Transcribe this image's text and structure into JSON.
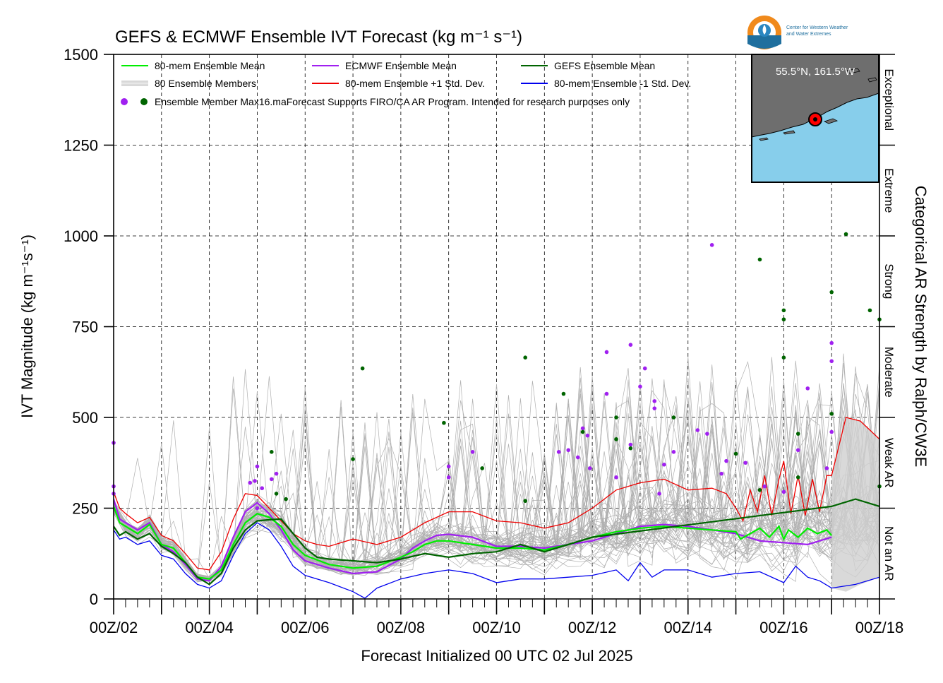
{
  "title": "GEFS & ECMWF Ensemble IVT Forecast (kg m⁻¹ s⁻¹)",
  "logo": {
    "line1": "Center for Western Weather",
    "line2": "and Water Extremes"
  },
  "chart_data": {
    "type": "line",
    "xlabel": "Forecast Initialized 00 UTC 02 Jul 2025",
    "ylabel": "IVT Magnitude (kg m⁻¹s⁻¹)",
    "right_label": "Categorical AR Strength by Ralph/CW3E",
    "xlim": [
      2,
      18
    ],
    "ylim": [
      0,
      1500
    ],
    "yticks": [
      0,
      250,
      500,
      750,
      1000,
      1250,
      1500
    ],
    "xticks": [
      {
        "day": 2,
        "label": "00Z/02"
      },
      {
        "day": 4,
        "label": "00Z/04"
      },
      {
        "day": 6,
        "label": "00Z/06"
      },
      {
        "day": 8,
        "label": "00Z/08"
      },
      {
        "day": 10,
        "label": "00Z/10"
      },
      {
        "day": 12,
        "label": "00Z/12"
      },
      {
        "day": 14,
        "label": "00Z/14"
      },
      {
        "day": 16,
        "label": "00Z/16"
      },
      {
        "day": 18,
        "label": "00Z/18"
      }
    ],
    "grid": true,
    "categories": [
      {
        "label": "Not an AR",
        "from": 0,
        "to": 250
      },
      {
        "label": "Weak AR",
        "from": 250,
        "to": 500
      },
      {
        "label": "Moderate",
        "from": 500,
        "to": 750
      },
      {
        "label": "Strong",
        "from": 750,
        "to": 1000
      },
      {
        "label": "Extreme",
        "from": 1000,
        "to": 1250
      },
      {
        "label": "Exceptional",
        "from": 1250,
        "to": 1500
      }
    ],
    "legend": [
      {
        "label": "80-mem Ensemble Mean",
        "color": "#00ee00",
        "kind": "line"
      },
      {
        "label": "ECMWF Ensemble Mean",
        "color": "#a020f0",
        "kind": "line"
      },
      {
        "label": "GEFS Ensemble Mean",
        "color": "#006400",
        "kind": "line"
      },
      {
        "label": "80 Ensemble Members",
        "color": "#b0b0b0",
        "kind": "multiline"
      },
      {
        "label": "80-mem Ensemble +1 Std. Dev.",
        "color": "#ee0000",
        "kind": "line"
      },
      {
        "label": "80-mem Ensemble -1 Std. Dev.",
        "color": "#0000ee",
        "kind": "line"
      }
    ],
    "legend_note": "Ensemble Member Max16.maForecast Supports FIRO/CA AR Program. Intended for research purposes only",
    "inset_label": "55.5°N, 161.5°W",
    "series": [
      {
        "name": "80-mem Ensemble Mean",
        "color": "#00ee00",
        "x": [
          2.0,
          2.125,
          2.25,
          2.5,
          2.75,
          3.0,
          3.25,
          3.5,
          3.75,
          4.0,
          4.25,
          4.5,
          4.75,
          5.0,
          5.25,
          5.5,
          5.75,
          6.0,
          6.5,
          7.0,
          7.5,
          8.0,
          8.25,
          8.5,
          8.75,
          9.0,
          9.5,
          10.0,
          10.5,
          11.0,
          11.5,
          12.0,
          12.5,
          13.0,
          13.5,
          14.0,
          14.5,
          15.0,
          15.1,
          15.3,
          15.5,
          15.7,
          15.9,
          16.0,
          16.1,
          16.3,
          16.5,
          16.7,
          16.9,
          17.0
        ],
        "y": [
          255,
          210,
          200,
          180,
          205,
          150,
          140,
          100,
          60,
          55,
          80,
          150,
          210,
          235,
          225,
          200,
          150,
          120,
          95,
          85,
          90,
          115,
          130,
          150,
          160,
          160,
          150,
          140,
          140,
          135,
          150,
          170,
          185,
          195,
          200,
          195,
          190,
          185,
          165,
          180,
          195,
          170,
          200,
          165,
          190,
          170,
          195,
          180,
          190,
          175
        ]
      },
      {
        "name": "ECMWF Ensemble Mean",
        "color": "#a020f0",
        "x": [
          2.0,
          2.125,
          2.25,
          2.5,
          2.75,
          3.0,
          3.25,
          3.5,
          3.75,
          4.0,
          4.25,
          4.5,
          4.75,
          5.0,
          5.25,
          5.5,
          5.75,
          6.0,
          6.5,
          7.0,
          7.5,
          8.0,
          8.25,
          8.5,
          8.75,
          9.0,
          9.5,
          10.0,
          10.5,
          11.0,
          11.5,
          12.0,
          12.5,
          13.0,
          13.5,
          14.0,
          14.5,
          15.0,
          15.5,
          16.0,
          16.5,
          17.0
        ],
        "y": [
          275,
          220,
          210,
          190,
          210,
          150,
          130,
          95,
          55,
          50,
          90,
          170,
          240,
          265,
          235,
          190,
          135,
          105,
          85,
          70,
          75,
          110,
          140,
          160,
          175,
          178,
          170,
          145,
          145,
          140,
          150,
          160,
          180,
          200,
          205,
          200,
          190,
          180,
          160,
          155,
          150,
          170
        ]
      },
      {
        "name": "GEFS Ensemble Mean",
        "color": "#006400",
        "x": [
          2.0,
          2.125,
          2.25,
          2.5,
          2.75,
          3.0,
          3.25,
          3.5,
          3.75,
          4.0,
          4.25,
          4.5,
          4.75,
          5.0,
          5.25,
          5.5,
          5.75,
          6.0,
          6.25,
          6.5,
          7.0,
          7.5,
          8.0,
          8.5,
          9.0,
          9.5,
          10.0,
          10.5,
          11.0,
          11.5,
          12.0,
          17.0,
          17.5,
          18.0
        ],
        "y": [
          200,
          175,
          185,
          165,
          180,
          145,
          125,
          100,
          60,
          40,
          70,
          140,
          190,
          215,
          218,
          220,
          180,
          140,
          115,
          110,
          105,
          100,
          110,
          125,
          115,
          125,
          130,
          150,
          130,
          150,
          170,
          255,
          275,
          255
        ]
      },
      {
        "name": "80-mem Ensemble +1 Std. Dev.",
        "color": "#ee0000",
        "x": [
          2.0,
          2.125,
          2.25,
          2.5,
          2.75,
          3.0,
          3.25,
          3.5,
          3.75,
          4.0,
          4.25,
          4.5,
          4.75,
          5.0,
          5.25,
          5.5,
          5.75,
          6.0,
          6.25,
          6.5,
          7.0,
          7.5,
          8.0,
          8.5,
          9.0,
          9.5,
          10.0,
          10.5,
          11.0,
          11.5,
          12.0,
          12.5,
          13.0,
          13.5,
          14.0,
          14.5,
          14.8,
          15.0,
          15.15,
          15.3,
          15.45,
          15.6,
          15.75,
          15.9,
          16.0,
          16.15,
          16.3,
          16.45,
          16.6,
          16.75,
          16.9,
          17.0,
          17.3,
          17.6,
          18.0
        ],
        "y": [
          295,
          250,
          235,
          210,
          225,
          175,
          160,
          125,
          85,
          80,
          130,
          220,
          290,
          285,
          250,
          215,
          180,
          160,
          150,
          145,
          165,
          150,
          170,
          210,
          240,
          240,
          215,
          210,
          195,
          210,
          250,
          300,
          320,
          330,
          300,
          305,
          290,
          250,
          215,
          300,
          240,
          340,
          230,
          330,
          380,
          235,
          340,
          230,
          330,
          240,
          340,
          340,
          500,
          490,
          440
        ]
      },
      {
        "name": "80-mem Ensemble -1 Std. Dev.",
        "color": "#0000ee",
        "x": [
          2.0,
          2.125,
          2.25,
          2.5,
          2.75,
          3.0,
          3.25,
          3.5,
          3.75,
          4.0,
          4.25,
          4.5,
          4.75,
          5.0,
          5.25,
          5.5,
          5.75,
          6.0,
          6.5,
          7.0,
          7.25,
          7.5,
          8.0,
          8.5,
          9.0,
          9.5,
          10.0,
          10.5,
          11.0,
          11.5,
          12.0,
          12.5,
          12.75,
          13.0,
          13.25,
          13.5,
          14.0,
          14.5,
          15.0,
          15.5,
          16.0,
          16.25,
          16.5,
          16.75,
          17.0,
          17.5,
          18.0
        ],
        "y": [
          190,
          165,
          170,
          150,
          160,
          120,
          110,
          70,
          40,
          30,
          50,
          120,
          180,
          210,
          190,
          145,
          90,
          65,
          45,
          20,
          2,
          30,
          55,
          70,
          80,
          70,
          45,
          55,
          55,
          60,
          65,
          80,
          50,
          100,
          60,
          80,
          80,
          60,
          70,
          75,
          45,
          90,
          60,
          50,
          30,
          40,
          60
        ]
      }
    ],
    "band": {
      "x": [
        17.0,
        17.3,
        17.6,
        18.0
      ],
      "upper": [
        340,
        500,
        490,
        440
      ],
      "lower": [
        30,
        20,
        40,
        60
      ]
    },
    "member_max_points": {
      "ECMWF": [
        [
          2.0,
          430
        ],
        [
          2.0,
          310
        ],
        [
          2.0,
          290
        ],
        [
          5.0,
          365
        ],
        [
          4.85,
          320
        ],
        [
          4.95,
          325
        ],
        [
          5.1,
          305
        ],
        [
          5.3,
          330
        ],
        [
          5.4,
          345
        ],
        [
          5.0,
          250
        ],
        [
          9.0,
          365
        ],
        [
          9.0,
          335
        ],
        [
          9.5,
          405
        ],
        [
          11.3,
          405
        ],
        [
          11.5,
          410
        ],
        [
          11.7,
          390
        ],
        [
          11.8,
          470
        ],
        [
          11.9,
          450
        ],
        [
          11.95,
          360
        ],
        [
          12.3,
          680
        ],
        [
          12.3,
          565
        ],
        [
          12.5,
          335
        ],
        [
          12.8,
          700
        ],
        [
          12.8,
          425
        ],
        [
          13.0,
          585
        ],
        [
          13.1,
          635
        ],
        [
          13.3,
          545
        ],
        [
          13.3,
          525
        ],
        [
          13.4,
          290
        ],
        [
          13.5,
          370
        ],
        [
          13.7,
          405
        ],
        [
          14.2,
          465
        ],
        [
          14.4,
          455
        ],
        [
          14.5,
          975
        ],
        [
          14.7,
          345
        ],
        [
          14.8,
          380
        ],
        [
          15.2,
          375
        ],
        [
          15.6,
          310
        ],
        [
          16.0,
          295
        ],
        [
          16.3,
          410
        ],
        [
          16.5,
          580
        ],
        [
          16.9,
          360
        ],
        [
          17.0,
          705
        ],
        [
          17.0,
          460
        ],
        [
          17.0,
          655
        ]
      ],
      "GEFS": [
        [
          5.3,
          405
        ],
        [
          5.4,
          290
        ],
        [
          5.6,
          275
        ],
        [
          7.0,
          385
        ],
        [
          7.2,
          635
        ],
        [
          8.9,
          485
        ],
        [
          9.7,
          360
        ],
        [
          10.6,
          665
        ],
        [
          10.6,
          270
        ],
        [
          11.4,
          565
        ],
        [
          11.8,
          460
        ],
        [
          12.5,
          440
        ],
        [
          12.5,
          500
        ],
        [
          12.8,
          415
        ],
        [
          13.7,
          500
        ],
        [
          15.0,
          400
        ],
        [
          15.5,
          935
        ],
        [
          15.5,
          300
        ],
        [
          16.0,
          795
        ],
        [
          16.0,
          770
        ],
        [
          16.0,
          665
        ],
        [
          16.3,
          335
        ],
        [
          16.3,
          455
        ],
        [
          17.0,
          845
        ],
        [
          17.0,
          510
        ],
        [
          17.3,
          1005
        ],
        [
          17.8,
          795
        ],
        [
          18.0,
          770
        ],
        [
          18.0,
          310
        ]
      ]
    }
  }
}
